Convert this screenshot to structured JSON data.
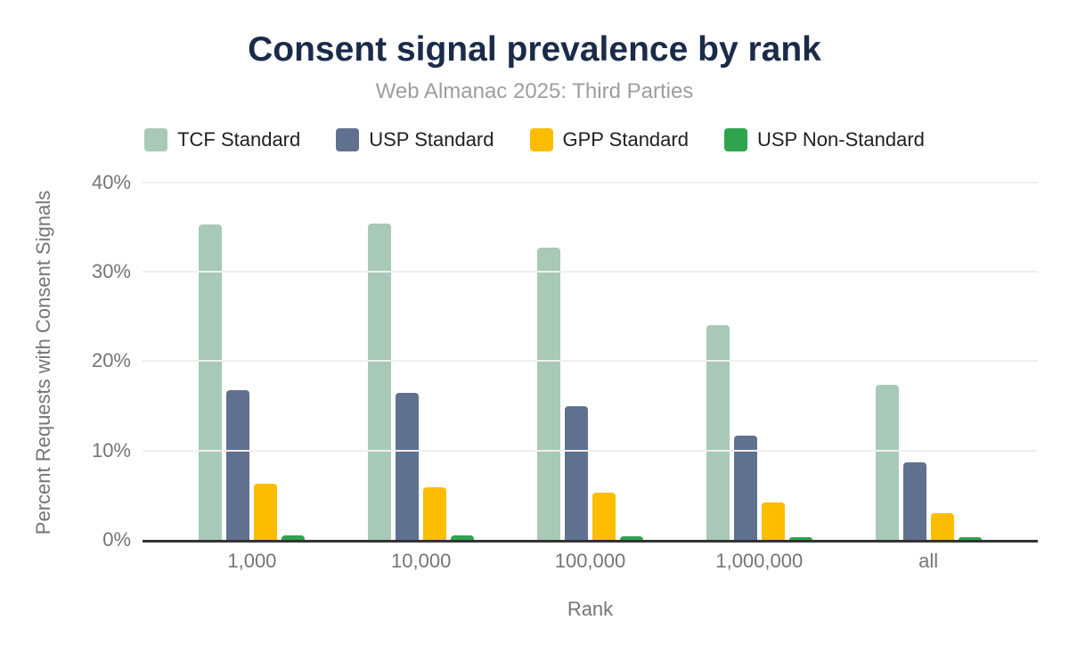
{
  "header": {
    "title": "Consent signal prevalence by rank",
    "subtitle": "Web Almanac 2025: Third Parties"
  },
  "colors": {
    "title": "#1a2b4a",
    "subtitle": "#9e9e9e",
    "axis_text": "#757575",
    "axis_line": "#333333",
    "gridline": "#efefef"
  },
  "chart_data": {
    "type": "bar",
    "title": "Consent signal prevalence by rank",
    "subtitle": "Web Almanac 2025: Third Parties",
    "categories": [
      "1,000",
      "10,000",
      "100,000",
      "1,000,000",
      "all"
    ],
    "series": [
      {
        "name": "TCF Standard",
        "color": "#a8c9b7",
        "values": [
          35.3,
          35.4,
          32.7,
          24.0,
          17.4
        ]
      },
      {
        "name": "USP Standard",
        "color": "#607190",
        "values": [
          16.8,
          16.5,
          15.0,
          11.7,
          8.7
        ]
      },
      {
        "name": "GPP Standard",
        "color": "#fcbd00",
        "values": [
          6.3,
          5.9,
          5.3,
          4.2,
          3.0
        ]
      },
      {
        "name": "USP Non-Standard",
        "color": "#2ea44f",
        "values": [
          0.5,
          0.5,
          0.4,
          0.3,
          0.3
        ]
      }
    ],
    "xlabel": "Rank",
    "ylabel": "Percent Requests with Consent Signals",
    "ylim": [
      0,
      40
    ],
    "yticks": [
      0,
      10,
      20,
      30,
      40
    ],
    "ytick_labels": [
      "0%",
      "10%",
      "20%",
      "30%",
      "40%"
    ],
    "grid": true,
    "legend_position": "top"
  }
}
